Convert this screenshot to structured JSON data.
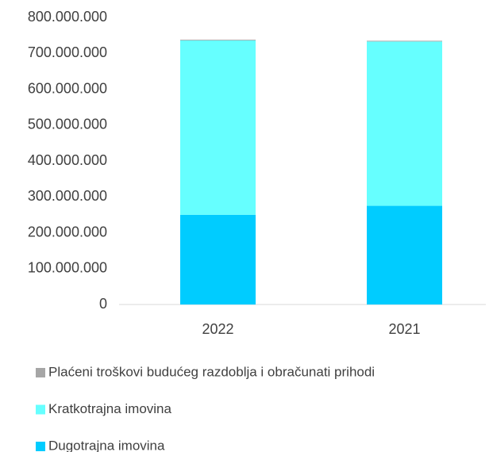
{
  "chart_data": {
    "type": "stacked_bar",
    "categories": [
      "2022",
      "2021"
    ],
    "series": [
      {
        "name": "Dugotrajna imovina",
        "color": "#00ccff",
        "values": [
          250000000,
          275000000
        ]
      },
      {
        "name": "Kratkotrajna imovina",
        "color": "#66ffff",
        "values": [
          486000000,
          458000000
        ]
      },
      {
        "name": "Plaćeni troškovi budućeg razdoblja i obračunati prihodi",
        "color": "#a6a6a6",
        "values": [
          2000000,
          2000000
        ]
      }
    ],
    "ylim": [
      0,
      800000000
    ],
    "yticks": [
      {
        "value": 0,
        "label": "0"
      },
      {
        "value": 100000000,
        "label": "100.000.000"
      },
      {
        "value": 200000000,
        "label": "200.000.000"
      },
      {
        "value": 300000000,
        "label": "300.000.000"
      },
      {
        "value": 400000000,
        "label": "400.000.000"
      },
      {
        "value": 500000000,
        "label": "500.000.000"
      },
      {
        "value": 600000000,
        "label": "600.000.000"
      },
      {
        "value": 700000000,
        "label": "700.000.000"
      },
      {
        "value": 800000000,
        "label": "800.000.000"
      }
    ],
    "grid": false
  }
}
